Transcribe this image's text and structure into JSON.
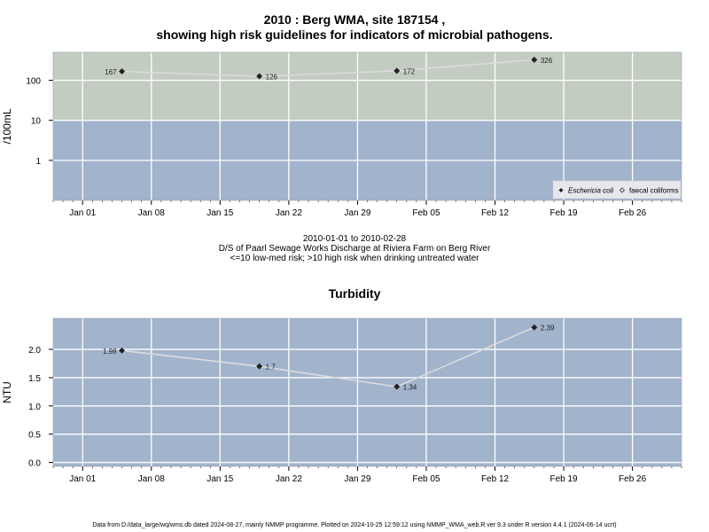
{
  "title": {
    "line1": "2010 : Berg WMA, site 187154 ,",
    "line2": "showing high risk guidelines for indicators of microbial pathogens."
  },
  "subtitle": {
    "date_range": "2010-01-01 to 2010-02-28",
    "site_description": "D/S of Paarl Sewage Works Discharge at Riviera Farm on Berg River",
    "risk_note": "<=10 low-med risk; >10 high risk when drinking untreated water"
  },
  "footer": "Data from D:/data_large/wq/wms.db dated 2024-08-27, mainly NMMP programme. Plotted on 2024-10-25 12:59:12 using NMMP_WMA_web.R ver 9.3 under R version 4.4.1 (2024-06-14 ucrt)",
  "colors": {
    "high_risk_band": "#c3ccc1",
    "low_risk_band": "#a2b3cc",
    "grid": "#ffffff",
    "line": "#dcdcdc",
    "point": "#222222"
  },
  "chart_data": [
    {
      "type": "line",
      "ylabel": "/100mL",
      "y_scale": "log",
      "ylim": [
        0.1,
        500
      ],
      "threshold": 10,
      "y_ticks": [
        1,
        10,
        100
      ],
      "y_tick_labels": [
        "1",
        "10",
        "100"
      ],
      "xlim": [
        "2009-12-29",
        "2010-03-03"
      ],
      "x_ticks": [
        "2010-01-01",
        "2010-01-08",
        "2010-01-15",
        "2010-01-22",
        "2010-01-29",
        "2010-02-05",
        "2010-02-12",
        "2010-02-19",
        "2010-02-26"
      ],
      "x_tick_labels": [
        "Jan 01",
        "Jan 08",
        "Jan 15",
        "Jan 22",
        "Jan 29",
        "Feb 05",
        "Feb 12",
        "Feb 19",
        "Feb 26"
      ],
      "series": [
        {
          "name": "Eschericia coli",
          "points": [
            {
              "x": "2010-01-05",
              "y": 167,
              "label": "167",
              "label_side": "left"
            },
            {
              "x": "2010-01-19",
              "y": 126,
              "label": "126",
              "label_side": "right"
            },
            {
              "x": "2010-02-02",
              "y": 172,
              "label": "172",
              "label_side": "right"
            },
            {
              "x": "2010-02-16",
              "y": 326,
              "label": "326",
              "label_side": "right"
            }
          ]
        }
      ],
      "legend": {
        "position": "bottom-right",
        "entries": [
          "Eschericia coli",
          "faecal coliforms"
        ]
      }
    },
    {
      "type": "line",
      "title": "Turbidity",
      "ylabel": "NTU",
      "ylim": [
        -0.07,
        2.55
      ],
      "y_ticks": [
        0,
        0.5,
        1,
        1.5,
        2
      ],
      "y_tick_labels": [
        "0.0",
        "0.5",
        "1.0",
        "1.5",
        "2.0"
      ],
      "xlim": [
        "2009-12-29",
        "2010-03-03"
      ],
      "x_ticks": [
        "2010-01-01",
        "2010-01-08",
        "2010-01-15",
        "2010-01-22",
        "2010-01-29",
        "2010-02-05",
        "2010-02-12",
        "2010-02-19",
        "2010-02-26"
      ],
      "x_tick_labels": [
        "Jan 01",
        "Jan 08",
        "Jan 15",
        "Jan 22",
        "Jan 29",
        "Feb 05",
        "Feb 12",
        "Feb 19",
        "Feb 26"
      ],
      "series": [
        {
          "points": [
            {
              "x": "2010-01-05",
              "y": 1.98,
              "label": "1.98",
              "label_side": "left"
            },
            {
              "x": "2010-01-19",
              "y": 1.7,
              "label": "1.7",
              "label_side": "right"
            },
            {
              "x": "2010-02-02",
              "y": 1.34,
              "label": "1.34",
              "label_side": "right"
            },
            {
              "x": "2010-02-16",
              "y": 2.39,
              "label": "2.39",
              "label_side": "right"
            }
          ]
        }
      ]
    }
  ]
}
